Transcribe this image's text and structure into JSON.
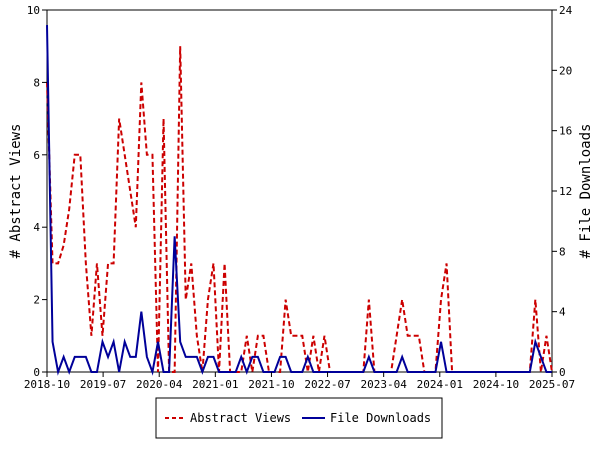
{
  "chart_data": {
    "type": "line",
    "title": "",
    "ylabel": "# Abstract Views",
    "y2label": "# File Downloads",
    "ylim": [
      0,
      10
    ],
    "y2lim": [
      0,
      24
    ],
    "y_ticks": [
      "0",
      "2",
      "4",
      "6",
      "8",
      "10"
    ],
    "y2_ticks": [
      "0",
      "4",
      "8",
      "12",
      "16",
      "20",
      "24"
    ],
    "x_ticks": [
      "2018-10",
      "2019-07",
      "2020-04",
      "2021-01",
      "2021-10",
      "2022-07",
      "2023-04",
      "2024-01",
      "2024-10",
      "2025-07"
    ],
    "grid": false,
    "legend_position": "bottom-center",
    "series": [
      {
        "name": "Abstract Views",
        "axis": "left",
        "color": "#cc0000",
        "style": "dashed",
        "values": [
          8,
          3,
          3,
          3.5,
          4.5,
          6,
          6,
          3,
          1,
          3,
          1,
          3,
          3,
          7,
          6,
          5,
          4,
          8,
          6,
          6,
          0,
          7,
          0,
          0,
          9,
          2,
          3,
          1,
          0,
          2,
          3,
          0,
          3,
          0,
          0,
          0,
          1,
          0,
          1,
          1,
          0,
          0,
          0,
          2,
          1,
          1,
          1,
          0,
          1,
          0,
          1,
          0,
          0,
          0,
          0,
          0,
          0,
          0,
          2,
          0,
          0,
          0,
          0,
          1,
          2,
          1,
          1,
          1,
          0,
          0,
          0,
          2,
          3,
          0,
          0,
          0,
          0,
          0,
          0,
          0,
          0,
          0,
          0,
          0,
          0,
          0,
          0,
          0,
          2,
          0,
          1,
          0
        ]
      },
      {
        "name": "File Downloads",
        "axis": "right",
        "color": "#000099",
        "style": "solid",
        "values": [
          23,
          2,
          0,
          1,
          0,
          1,
          1,
          1,
          0,
          0,
          2,
          1,
          2,
          0,
          2,
          1,
          1,
          4,
          1,
          0,
          2,
          0,
          0,
          9,
          2,
          1,
          1,
          1,
          0,
          1,
          1,
          0,
          0,
          0,
          0,
          1,
          0,
          1,
          1,
          0,
          0,
          0,
          1,
          1,
          0,
          0,
          0,
          1,
          0,
          0,
          0,
          0,
          0,
          0,
          0,
          0,
          0,
          0,
          1,
          0,
          0,
          0,
          0,
          0,
          1,
          0,
          0,
          0,
          0,
          0,
          0,
          2,
          0,
          0,
          0,
          0,
          0,
          0,
          0,
          0,
          0,
          0,
          0,
          0,
          0,
          0,
          0,
          0,
          2,
          1,
          0,
          0
        ]
      }
    ]
  },
  "legend": {
    "items": [
      {
        "label": "Abstract Views"
      },
      {
        "label": "File Downloads"
      }
    ]
  }
}
